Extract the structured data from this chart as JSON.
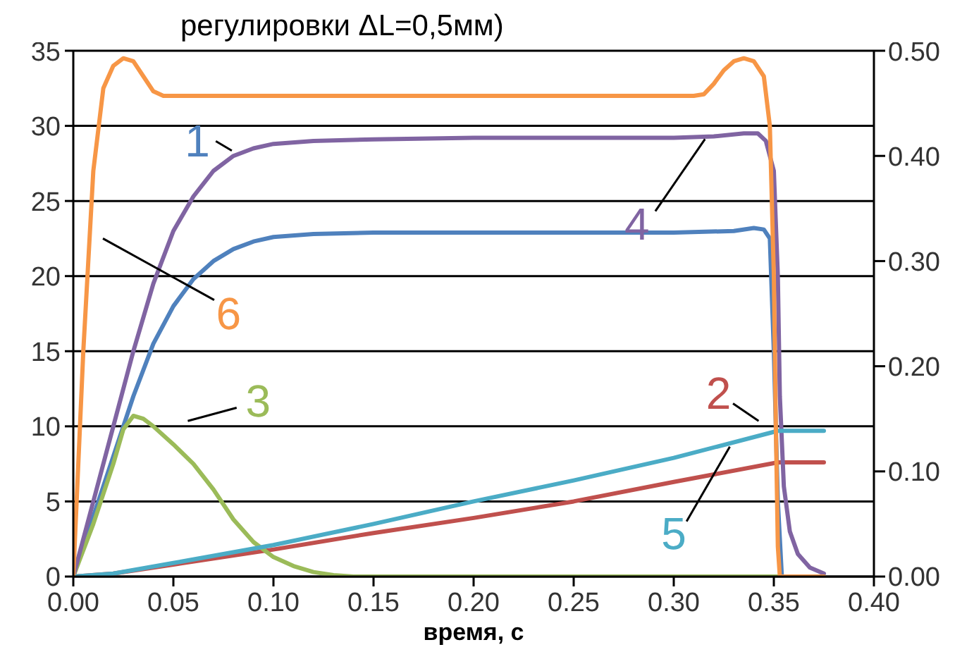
{
  "chart_data": {
    "type": "line",
    "title": "регулировки ΔL=0,5мм)",
    "xlabel": "время, с",
    "xlim": [
      0,
      0.4
    ],
    "xticks": [
      {
        "value": 0,
        "label": "0.00"
      },
      {
        "value": 0.05,
        "label": "0.05"
      },
      {
        "value": 0.1,
        "label": "0.10"
      },
      {
        "value": 0.15,
        "label": "0.15"
      },
      {
        "value": 0.2,
        "label": "0.20"
      },
      {
        "value": 0.25,
        "label": "0.25"
      },
      {
        "value": 0.3,
        "label": "0.30"
      },
      {
        "value": 0.35,
        "label": "0.35"
      },
      {
        "value": 0.4,
        "label": "0.40"
      }
    ],
    "ylim": [
      0,
      35
    ],
    "yticks": [
      0,
      5,
      10,
      15,
      20,
      25,
      30,
      35
    ],
    "y2lim": [
      0,
      0.5
    ],
    "y2ticks": [
      {
        "value": 0,
        "label": "0.00"
      },
      {
        "value": 0.1,
        "label": "0.10"
      },
      {
        "value": 0.2,
        "label": "0.20"
      },
      {
        "value": 0.3,
        "label": "0.30"
      },
      {
        "value": 0.4,
        "label": "0.40"
      },
      {
        "value": 0.5,
        "label": "0.50"
      }
    ],
    "grid": "y",
    "marker": "none",
    "series": [
      {
        "name": "1",
        "color": "#4f81bd",
        "x": [
          0,
          0.01,
          0.02,
          0.03,
          0.04,
          0.05,
          0.06,
          0.07,
          0.08,
          0.09,
          0.1,
          0.12,
          0.15,
          0.3,
          0.33,
          0.34,
          0.345,
          0.348,
          0.35,
          0.352,
          0.354
        ],
        "values": [
          0,
          4,
          8,
          12,
          15.5,
          18,
          19.8,
          21,
          21.8,
          22.3,
          22.6,
          22.8,
          22.9,
          22.9,
          23,
          23.2,
          23.1,
          22.5,
          15,
          5,
          0
        ]
      },
      {
        "name": "2",
        "color": "#c0504d",
        "x": [
          0,
          0.02,
          0.05,
          0.1,
          0.15,
          0.2,
          0.25,
          0.3,
          0.352,
          0.375
        ],
        "values": [
          0,
          0.2,
          0.8,
          1.8,
          2.9,
          3.9,
          5,
          6.3,
          7.6,
          7.6
        ]
      },
      {
        "name": "3",
        "color": "#9bbb59",
        "x": [
          0,
          0.01,
          0.02,
          0.025,
          0.03,
          0.035,
          0.04,
          0.05,
          0.06,
          0.07,
          0.08,
          0.09,
          0.1,
          0.11,
          0.12,
          0.13,
          0.14,
          0.375
        ],
        "values": [
          0,
          3.5,
          7.5,
          9.8,
          10.7,
          10.5,
          10,
          8.8,
          7.5,
          5.8,
          3.8,
          2.3,
          1.3,
          0.7,
          0.3,
          0.1,
          0,
          0
        ]
      },
      {
        "name": "4",
        "color": "#8064a2",
        "x": [
          0,
          0.01,
          0.02,
          0.03,
          0.04,
          0.05,
          0.06,
          0.07,
          0.08,
          0.09,
          0.1,
          0.12,
          0.15,
          0.2,
          0.3,
          0.32,
          0.335,
          0.342,
          0.346,
          0.35,
          0.352,
          0.353,
          0.355,
          0.358,
          0.362,
          0.368,
          0.375
        ],
        "values": [
          0,
          5,
          10,
          15,
          19.5,
          23,
          25.3,
          27,
          28,
          28.5,
          28.8,
          29,
          29.1,
          29.2,
          29.2,
          29.3,
          29.5,
          29.5,
          29,
          27,
          20,
          12,
          6,
          3,
          1.5,
          0.6,
          0.2
        ]
      },
      {
        "name": "5",
        "color": "#4bacc6",
        "x": [
          0,
          0.02,
          0.05,
          0.1,
          0.15,
          0.2,
          0.25,
          0.3,
          0.352,
          0.375
        ],
        "values": [
          0,
          0.2,
          0.9,
          2.1,
          3.5,
          5,
          6.4,
          7.9,
          9.7,
          9.7
        ]
      },
      {
        "name": "6",
        "color": "#f79646",
        "x": [
          0,
          0.005,
          0.01,
          0.015,
          0.02,
          0.025,
          0.03,
          0.035,
          0.04,
          0.045,
          0.31,
          0.315,
          0.32,
          0.325,
          0.33,
          0.335,
          0.34,
          0.345,
          0.348,
          0.35,
          0.351,
          0.352,
          0.353,
          0.375
        ],
        "values": [
          0,
          15,
          27,
          32.5,
          34,
          34.5,
          34.3,
          33.3,
          32.3,
          32,
          32,
          32.1,
          32.8,
          33.7,
          34.3,
          34.5,
          34.3,
          33.3,
          30,
          20,
          10,
          2,
          0,
          0
        ]
      }
    ]
  }
}
